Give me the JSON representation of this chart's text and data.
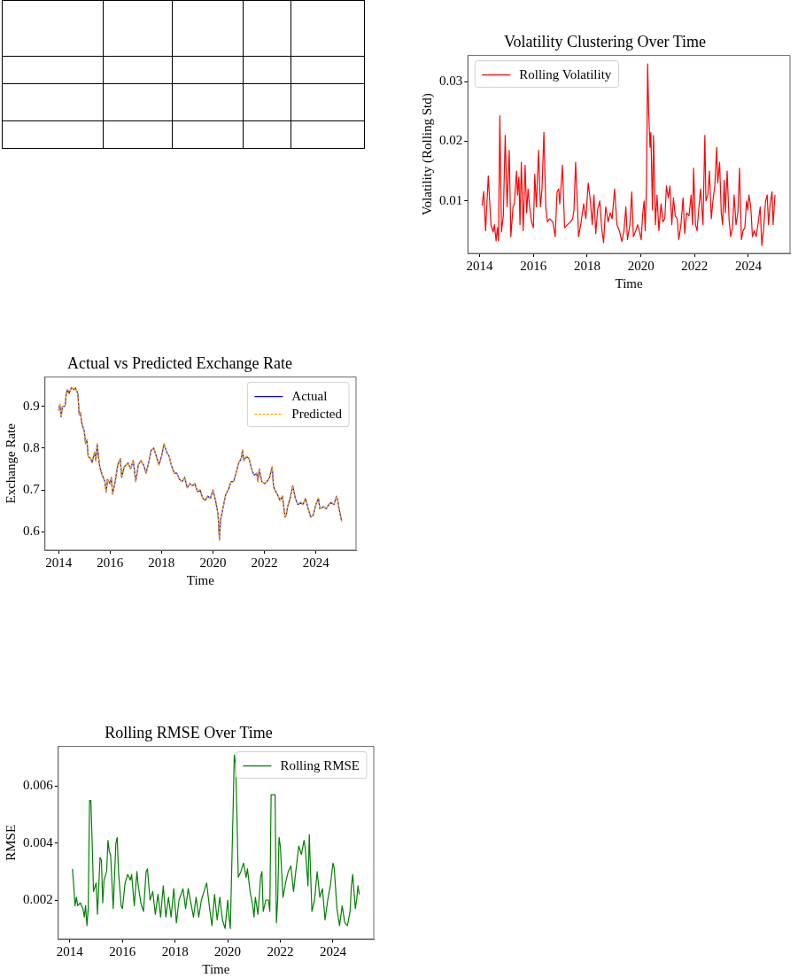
{
  "chart_data": [
    {
      "type": "line",
      "title": "Volatility Clustering Over Time",
      "xlabel": "Time",
      "ylabel": "Volatility (Rolling Std)",
      "legend": "top left",
      "grid": false,
      "xlim": [
        2013.56,
        2025.55
      ],
      "xticks": [
        2014,
        2016,
        2018,
        2020,
        2022,
        2024
      ],
      "ylim": [
        0.0012,
        0.0344
      ],
      "yticks": [
        0.01,
        0.02,
        0.03
      ],
      "x": [
        2014.09,
        2014.15,
        2014.22,
        2014.32,
        2014.42,
        2014.5,
        2014.55,
        2014.61,
        2014.66,
        2014.7,
        2014.75,
        2014.81,
        2014.88,
        2014.95,
        2015.02,
        2015.1,
        2015.16,
        2015.24,
        2015.29,
        2015.37,
        2015.41,
        2015.46,
        2015.5,
        2015.55,
        2015.62,
        2015.69,
        2015.75,
        2015.8,
        2015.86,
        2015.93,
        2016.0,
        2016.05,
        2016.11,
        2016.19,
        2016.26,
        2016.32,
        2016.39,
        2016.46,
        2016.52,
        2016.61,
        2016.72,
        2016.81,
        2016.88,
        2016.94,
        2016.98,
        2017.03,
        2017.08,
        2017.16,
        2017.27,
        2017.38,
        2017.46,
        2017.51,
        2017.57,
        2017.64,
        2017.68,
        2017.76,
        2017.87,
        2017.95,
        2018.04,
        2018.12,
        2018.19,
        2018.25,
        2018.32,
        2018.39,
        2018.47,
        2018.54,
        2018.61,
        2018.69,
        2018.78,
        2018.86,
        2018.93,
        2019.02,
        2019.11,
        2019.2,
        2019.29,
        2019.37,
        2019.44,
        2019.5,
        2019.59,
        2019.66,
        2019.72,
        2019.81,
        2019.88,
        2019.94,
        2020.01,
        2020.07,
        2020.12,
        2020.16,
        2020.21,
        2020.25,
        2020.29,
        2020.34,
        2020.37,
        2020.4,
        2020.43,
        2020.47,
        2020.54,
        2020.6,
        2020.67,
        2020.75,
        2020.82,
        2020.89,
        2020.95,
        2021.02,
        2021.08,
        2021.15,
        2021.21,
        2021.28,
        2021.35,
        2021.41,
        2021.49,
        2021.57,
        2021.63,
        2021.7,
        2021.79,
        2021.87,
        2021.92,
        2021.96,
        2022.03,
        2022.09,
        2022.16,
        2022.22,
        2022.31,
        2022.38,
        2022.42,
        2022.49,
        2022.55,
        2022.62,
        2022.68,
        2022.75,
        2022.82,
        2022.86,
        2022.93,
        2022.99,
        2023.04,
        2023.1,
        2023.14,
        2023.21,
        2023.28,
        2023.34,
        2023.41,
        2023.47,
        2023.54,
        2023.61,
        2023.67,
        2023.74,
        2023.8,
        2023.87,
        2023.93,
        2023.98,
        2024.02,
        2024.09,
        2024.15,
        2024.22,
        2024.29,
        2024.37,
        2024.44,
        2024.5,
        2024.57,
        2024.64,
        2024.7,
        2024.75,
        2024.81,
        2024.88,
        2024.92,
        2024.99
      ],
      "series": [
        {
          "name": "Rolling Volatility",
          "color": "#ff0000",
          "values": [
            0.0092,
            0.0116,
            0.005,
            0.0142,
            0.006,
            0.0048,
            0.006,
            0.0033,
            0.0055,
            0.0033,
            0.0243,
            0.0048,
            0.0075,
            0.021,
            0.009,
            0.0185,
            0.004,
            0.009,
            0.0095,
            0.015,
            0.011,
            0.014,
            0.006,
            0.0165,
            0.005,
            0.016,
            0.008,
            0.012,
            0.009,
            0.0065,
            0.0055,
            0.0145,
            0.009,
            0.0185,
            0.009,
            0.012,
            0.0215,
            0.009,
            0.0065,
            0.007,
            0.0065,
            0.004,
            0.0115,
            0.012,
            0.0095,
            0.0125,
            0.016,
            0.0055,
            0.006,
            0.0065,
            0.007,
            0.0085,
            0.0165,
            0.009,
            0.004,
            0.006,
            0.0095,
            0.007,
            0.013,
            0.01,
            0.006,
            0.011,
            0.0045,
            0.0085,
            0.01,
            0.0055,
            0.003,
            0.009,
            0.0065,
            0.008,
            0.007,
            0.012,
            0.006,
            0.005,
            0.0032,
            0.005,
            0.009,
            0.0035,
            0.006,
            0.0115,
            0.004,
            0.005,
            0.006,
            0.005,
            0.0035,
            0.008,
            0.01,
            0.005,
            0.013,
            0.033,
            0.025,
            0.019,
            0.0215,
            0.015,
            0.0085,
            0.021,
            0.006,
            0.011,
            0.005,
            0.0095,
            0.0065,
            0.007,
            0.0125,
            0.0105,
            0.0125,
            0.006,
            0.0105,
            0.0075,
            0.007,
            0.0035,
            0.006,
            0.0105,
            0.0045,
            0.008,
            0.0075,
            0.011,
            0.006,
            0.0155,
            0.006,
            0.005,
            0.009,
            0.012,
            0.006,
            0.021,
            0.01,
            0.011,
            0.015,
            0.007,
            0.01,
            0.0125,
            0.019,
            0.013,
            0.0165,
            0.008,
            0.006,
            0.0135,
            0.008,
            0.015,
            0.007,
            0.004,
            0.0055,
            0.011,
            0.006,
            0.008,
            0.0155,
            0.0035,
            0.005,
            0.0055,
            0.01,
            0.0085,
            0.011,
            0.009,
            0.004,
            0.005,
            0.004,
            0.0065,
            0.009,
            0.0025,
            0.0055,
            0.01,
            0.011,
            0.006,
            0.0095,
            0.0115,
            0.006,
            0.011
          ]
        }
      ]
    },
    {
      "type": "line",
      "title": "Actual vs Predicted Exchange Rate",
      "xlabel": "Time",
      "ylabel": "Exchange Rate",
      "legend": "top right",
      "grid": false,
      "xlim": [
        2013.47,
        2025.56
      ],
      "xticks": [
        2014,
        2016,
        2018,
        2020,
        2022,
        2024
      ],
      "ylim": [
        0.556,
        0.97
      ],
      "yticks": [
        0.6,
        0.7,
        0.8,
        0.9
      ],
      "x": [
        2014.0,
        2014.05,
        2014.1,
        2014.15,
        2014.25,
        2014.3,
        2014.35,
        2014.4,
        2014.5,
        2014.6,
        2014.65,
        2014.75,
        2014.8,
        2014.85,
        2014.9,
        2015.0,
        2015.05,
        2015.1,
        2015.15,
        2015.25,
        2015.3,
        2015.4,
        2015.45,
        2015.5,
        2015.55,
        2015.6,
        2015.7,
        2015.8,
        2015.85,
        2015.9,
        2016.0,
        2016.05,
        2016.1,
        2016.2,
        2016.3,
        2016.4,
        2016.45,
        2016.55,
        2016.7,
        2016.8,
        2016.9,
        2017.0,
        2017.1,
        2017.2,
        2017.3,
        2017.4,
        2017.5,
        2017.6,
        2017.7,
        2017.8,
        2017.9,
        2018.0,
        2018.1,
        2018.2,
        2018.3,
        2018.4,
        2018.5,
        2018.6,
        2018.7,
        2018.8,
        2018.9,
        2019.0,
        2019.1,
        2019.2,
        2019.3,
        2019.4,
        2019.5,
        2019.6,
        2019.7,
        2019.8,
        2019.9,
        2020.0,
        2020.1,
        2020.2,
        2020.25,
        2020.3,
        2020.4,
        2020.5,
        2020.6,
        2020.7,
        2020.8,
        2020.9,
        2021.0,
        2021.1,
        2021.15,
        2021.2,
        2021.3,
        2021.4,
        2021.5,
        2021.6,
        2021.7,
        2021.75,
        2021.8,
        2021.9,
        2022.0,
        2022.1,
        2022.2,
        2022.3,
        2022.35,
        2022.4,
        2022.5,
        2022.6,
        2022.7,
        2022.8,
        2022.85,
        2022.9,
        2023.0,
        2023.1,
        2023.2,
        2023.3,
        2023.4,
        2023.5,
        2023.6,
        2023.7,
        2023.8,
        2023.9,
        2024.0,
        2024.1,
        2024.15,
        2024.3,
        2024.4,
        2024.5,
        2024.6,
        2024.7,
        2024.8,
        2024.85,
        2024.9,
        2025.0
      ],
      "series": [
        {
          "name": "Actual",
          "color": "#0000ff",
          "values": [
            0.89,
            0.905,
            0.875,
            0.9,
            0.9,
            0.93,
            0.94,
            0.93,
            0.945,
            0.94,
            0.945,
            0.93,
            0.88,
            0.885,
            0.86,
            0.84,
            0.81,
            0.82,
            0.78,
            0.775,
            0.765,
            0.79,
            0.77,
            0.81,
            0.78,
            0.755,
            0.735,
            0.72,
            0.695,
            0.725,
            0.715,
            0.73,
            0.69,
            0.72,
            0.76,
            0.775,
            0.73,
            0.755,
            0.765,
            0.75,
            0.77,
            0.72,
            0.76,
            0.77,
            0.76,
            0.74,
            0.765,
            0.795,
            0.8,
            0.78,
            0.76,
            0.78,
            0.81,
            0.79,
            0.78,
            0.755,
            0.74,
            0.74,
            0.725,
            0.72,
            0.73,
            0.705,
            0.715,
            0.71,
            0.715,
            0.695,
            0.7,
            0.68,
            0.675,
            0.685,
            0.68,
            0.7,
            0.675,
            0.64,
            0.58,
            0.63,
            0.66,
            0.69,
            0.7,
            0.72,
            0.72,
            0.74,
            0.765,
            0.775,
            0.795,
            0.77,
            0.78,
            0.775,
            0.75,
            0.735,
            0.74,
            0.72,
            0.75,
            0.72,
            0.715,
            0.72,
            0.73,
            0.755,
            0.71,
            0.7,
            0.69,
            0.675,
            0.685,
            0.635,
            0.64,
            0.66,
            0.68,
            0.71,
            0.68,
            0.665,
            0.67,
            0.665,
            0.68,
            0.655,
            0.635,
            0.64,
            0.665,
            0.68,
            0.655,
            0.66,
            0.655,
            0.665,
            0.67,
            0.665,
            0.685,
            0.675,
            0.655,
            0.625
          ]
        },
        {
          "name": "Predicted",
          "color": "#ffa500",
          "line_style": "dashed",
          "values": [
            0.89,
            0.905,
            0.875,
            0.9,
            0.9,
            0.93,
            0.94,
            0.93,
            0.945,
            0.94,
            0.945,
            0.93,
            0.88,
            0.885,
            0.86,
            0.84,
            0.81,
            0.82,
            0.78,
            0.775,
            0.765,
            0.79,
            0.77,
            0.81,
            0.78,
            0.755,
            0.735,
            0.72,
            0.695,
            0.725,
            0.715,
            0.73,
            0.69,
            0.72,
            0.76,
            0.775,
            0.73,
            0.755,
            0.765,
            0.75,
            0.77,
            0.72,
            0.76,
            0.77,
            0.76,
            0.74,
            0.765,
            0.795,
            0.8,
            0.78,
            0.76,
            0.78,
            0.81,
            0.79,
            0.78,
            0.755,
            0.74,
            0.74,
            0.725,
            0.72,
            0.73,
            0.705,
            0.715,
            0.71,
            0.715,
            0.695,
            0.7,
            0.68,
            0.675,
            0.685,
            0.68,
            0.7,
            0.675,
            0.64,
            0.58,
            0.63,
            0.66,
            0.69,
            0.7,
            0.72,
            0.72,
            0.74,
            0.765,
            0.775,
            0.795,
            0.77,
            0.78,
            0.775,
            0.75,
            0.735,
            0.74,
            0.72,
            0.75,
            0.72,
            0.715,
            0.72,
            0.73,
            0.755,
            0.71,
            0.7,
            0.69,
            0.675,
            0.685,
            0.635,
            0.64,
            0.66,
            0.68,
            0.71,
            0.68,
            0.665,
            0.67,
            0.665,
            0.68,
            0.655,
            0.635,
            0.64,
            0.665,
            0.68,
            0.655,
            0.66,
            0.655,
            0.665,
            0.67,
            0.665,
            0.685,
            0.675,
            0.655,
            0.625
          ]
        }
      ]
    },
    {
      "type": "line",
      "title": "Rolling RMSE Over Time",
      "xlabel": "Time",
      "ylabel": "RMSE",
      "legend": "top right",
      "grid": false,
      "xlim": [
        2013.56,
        2025.55
      ],
      "xticks": [
        2014,
        2016,
        2018,
        2020,
        2022,
        2024
      ],
      "ylim": [
        0.00063,
        0.0074
      ],
      "yticks": [
        0.002,
        0.004,
        0.006
      ],
      "x": [
        2014.1,
        2014.15,
        2014.2,
        2014.25,
        2014.3,
        2014.4,
        2014.5,
        2014.55,
        2014.6,
        2014.65,
        2014.7,
        2014.75,
        2014.8,
        2014.85,
        2014.9,
        2015.0,
        2015.05,
        2015.1,
        2015.15,
        2015.2,
        2015.25,
        2015.3,
        2015.4,
        2015.45,
        2015.5,
        2015.55,
        2015.65,
        2015.75,
        2015.8,
        2015.85,
        2015.95,
        2016.0,
        2016.1,
        2016.2,
        2016.3,
        2016.35,
        2016.45,
        2016.55,
        2016.6,
        2016.7,
        2016.8,
        2016.9,
        2016.95,
        2017.05,
        2017.15,
        2017.25,
        2017.35,
        2017.45,
        2017.55,
        2017.65,
        2017.75,
        2017.85,
        2017.95,
        2018.05,
        2018.15,
        2018.3,
        2018.4,
        2018.5,
        2018.6,
        2018.7,
        2018.8,
        2018.9,
        2019.0,
        2019.1,
        2019.2,
        2019.3,
        2019.4,
        2019.5,
        2019.6,
        2019.7,
        2019.8,
        2019.9,
        2020.0,
        2020.05,
        2020.1,
        2020.2,
        2020.25,
        2020.3,
        2020.35,
        2020.4,
        2020.5,
        2020.6,
        2020.7,
        2020.75,
        2020.85,
        2020.95,
        2021.0,
        2021.05,
        2021.15,
        2021.25,
        2021.3,
        2021.35,
        2021.45,
        2021.55,
        2021.6,
        2021.65,
        2021.8,
        2021.85,
        2021.9,
        2021.95,
        2022.0,
        2022.1,
        2022.2,
        2022.3,
        2022.4,
        2022.5,
        2022.6,
        2022.7,
        2022.8,
        2022.9,
        2022.95,
        2023.05,
        2023.1,
        2023.2,
        2023.3,
        2023.4,
        2023.5,
        2023.6,
        2023.7,
        2023.8,
        2023.9,
        2024.0,
        2024.05,
        2024.15,
        2024.25,
        2024.35,
        2024.45,
        2024.55,
        2024.65,
        2024.7,
        2024.75,
        2024.85,
        2024.9,
        2024.95,
        2025.0
      ],
      "series": [
        {
          "name": "Rolling RMSE",
          "color": "#008000",
          "values": [
            0.0031,
            0.0025,
            0.0018,
            0.0021,
            0.0018,
            0.0019,
            0.0017,
            0.0014,
            0.0018,
            0.0011,
            0.0017,
            0.0055,
            0.0055,
            0.004,
            0.0023,
            0.0026,
            0.0015,
            0.0025,
            0.0035,
            0.0034,
            0.0019,
            0.0027,
            0.003,
            0.0041,
            0.0037,
            0.0036,
            0.0017,
            0.004,
            0.0042,
            0.003,
            0.0018,
            0.0017,
            0.0026,
            0.0029,
            0.0027,
            0.0029,
            0.0018,
            0.003,
            0.0025,
            0.0019,
            0.0016,
            0.003,
            0.0031,
            0.002,
            0.0023,
            0.0015,
            0.0022,
            0.0014,
            0.0025,
            0.0014,
            0.0021,
            0.0014,
            0.0024,
            0.0012,
            0.002,
            0.0024,
            0.0017,
            0.0024,
            0.0019,
            0.0014,
            0.0021,
            0.0014,
            0.002,
            0.0023,
            0.0026,
            0.0018,
            0.0011,
            0.0022,
            0.0013,
            0.0021,
            0.0013,
            0.001,
            0.002,
            0.0014,
            0.001,
            0.005,
            0.0071,
            0.0068,
            0.005,
            0.0028,
            0.003,
            0.0033,
            0.0028,
            0.0031,
            0.0023,
            0.0018,
            0.0014,
            0.0021,
            0.0015,
            0.0028,
            0.003,
            0.0016,
            0.002,
            0.002,
            0.0016,
            0.0057,
            0.0057,
            0.0012,
            0.002,
            0.0042,
            0.0039,
            0.0021,
            0.0026,
            0.003,
            0.0032,
            0.0023,
            0.0031,
            0.0039,
            0.0036,
            0.0041,
            0.0038,
            0.0025,
            0.0043,
            0.0016,
            0.002,
            0.003,
            0.0021,
            0.0024,
            0.0013,
            0.002,
            0.0025,
            0.0033,
            0.0031,
            0.0017,
            0.0011,
            0.0018,
            0.0012,
            0.0011,
            0.0016,
            0.0025,
            0.0029,
            0.0017,
            0.002,
            0.0025,
            0.0022
          ]
        }
      ]
    }
  ]
}
